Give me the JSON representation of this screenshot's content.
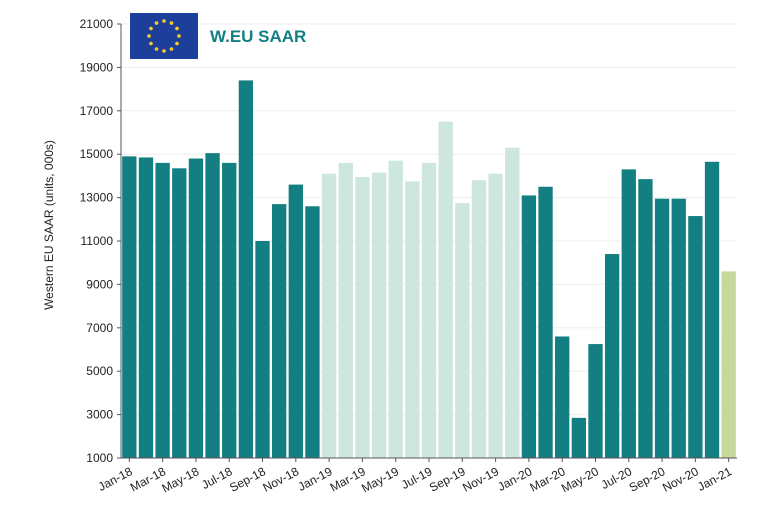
{
  "chart_data": {
    "type": "bar",
    "title": "W.EU SAAR",
    "ylabel": "Western EU SAAR (units, 000s)",
    "xlabel": "",
    "ylim": [
      1000,
      21000
    ],
    "yticks": [
      1000,
      3000,
      5000,
      7000,
      9000,
      11000,
      13000,
      15000,
      17000,
      19000,
      21000
    ],
    "x_tick_labels": [
      "Jan-18",
      "Mar-18",
      "May-18",
      "Jul-18",
      "Sep-18",
      "Nov-18",
      "Jan-19",
      "Mar-19",
      "May-19",
      "Jul-19",
      "Sep-19",
      "Nov-19",
      "Jan-20",
      "Mar-20",
      "May-20",
      "Jul-20",
      "Sep-20",
      "Nov-20",
      "Jan-21"
    ],
    "categories": [
      "Jan-18",
      "Feb-18",
      "Mar-18",
      "Apr-18",
      "May-18",
      "Jun-18",
      "Jul-18",
      "Aug-18",
      "Sep-18",
      "Oct-18",
      "Nov-18",
      "Dec-18",
      "Jan-19",
      "Feb-19",
      "Mar-19",
      "Apr-19",
      "May-19",
      "Jun-19",
      "Jul-19",
      "Aug-19",
      "Sep-19",
      "Oct-19",
      "Nov-19",
      "Dec-19",
      "Jan-20",
      "Feb-20",
      "Mar-20",
      "Apr-20",
      "May-20",
      "Jun-20",
      "Jul-20",
      "Aug-20",
      "Sep-20",
      "Oct-20",
      "Nov-20",
      "Dec-20",
      "Jan-21"
    ],
    "values": [
      14900,
      14850,
      14600,
      14350,
      14800,
      15050,
      14600,
      18400,
      11000,
      12700,
      13600,
      12600,
      14100,
      14600,
      13950,
      14150,
      14700,
      13750,
      14600,
      16500,
      12750,
      13800,
      14100,
      15300,
      13100,
      13500,
      6600,
      2850,
      6250,
      10400,
      14300,
      13850,
      12950,
      12950,
      12150,
      14650,
      9600
    ],
    "bar_colors": [
      "#137f82",
      "#137f82",
      "#137f82",
      "#137f82",
      "#137f82",
      "#137f82",
      "#137f82",
      "#137f82",
      "#137f82",
      "#137f82",
      "#137f82",
      "#137f82",
      "#cde6de",
      "#cde6de",
      "#cde6de",
      "#cde6de",
      "#cde6de",
      "#cde6de",
      "#cde6de",
      "#cde6de",
      "#cde6de",
      "#cde6de",
      "#cde6de",
      "#cde6de",
      "#137f82",
      "#137f82",
      "#137f82",
      "#137f82",
      "#137f82",
      "#137f82",
      "#137f82",
      "#137f82",
      "#137f82",
      "#137f82",
      "#137f82",
      "#137f82",
      "#c5d99b"
    ],
    "grid": true,
    "legend": "none",
    "title_color": "#137f82",
    "flag_colors": {
      "background": "#1d3f9b",
      "stars": "#f6cf22"
    }
  }
}
